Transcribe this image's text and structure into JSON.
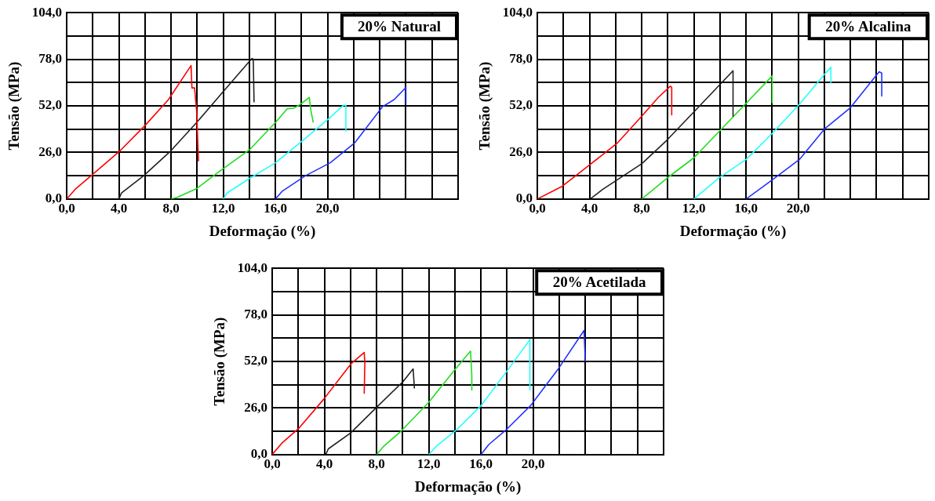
{
  "chart_data": [
    {
      "type": "line",
      "title": "20% Natural",
      "xlabel": "Deformação (%)",
      "ylabel": "Tensão (MPa)",
      "xlim": [
        0,
        30
      ],
      "ylim": [
        0,
        104
      ],
      "xticks": [
        {
          "value": 0,
          "label": "0,0"
        },
        {
          "value": 2,
          "label": null
        },
        {
          "value": 4,
          "label": "4,0"
        },
        {
          "value": 6,
          "label": null
        },
        {
          "value": 8,
          "label": "8,0"
        },
        {
          "value": 10,
          "label": null
        },
        {
          "value": 12,
          "label": "12,0"
        },
        {
          "value": 14,
          "label": null
        },
        {
          "value": 16,
          "label": "16,0"
        },
        {
          "value": 18,
          "label": null
        },
        {
          "value": 20,
          "label": "20,0"
        },
        {
          "value": 22,
          "label": null
        },
        {
          "value": 24,
          "label": null
        },
        {
          "value": 26,
          "label": null
        },
        {
          "value": 28,
          "label": null
        },
        {
          "value": 30,
          "label": null
        }
      ],
      "yticks": [
        {
          "value": 0,
          "label": "0,0"
        },
        {
          "value": 13,
          "label": null
        },
        {
          "value": 26,
          "label": "26,0"
        },
        {
          "value": 39,
          "label": null
        },
        {
          "value": 52,
          "label": "52,0"
        },
        {
          "value": 65,
          "label": null
        },
        {
          "value": 78,
          "label": "78,0"
        },
        {
          "value": 91,
          "label": null
        },
        {
          "value": 104,
          "label": "104,0"
        }
      ],
      "grid": true,
      "legend": false,
      "marker": "none",
      "line_style": "solid",
      "series": [
        {
          "color": "#ff0000",
          "x": [
            0,
            0.7,
            1.87,
            4,
            6,
            7.8,
            9.53,
            9.6,
            9.8,
            9.96,
            10.1
          ],
          "values": [
            0,
            5.8,
            13,
            26.3,
            41,
            55.5,
            74.5,
            62,
            62,
            49,
            21
          ]
        },
        {
          "color": "#222222",
          "x": [
            4,
            4.2,
            5.9,
            7.9,
            9.96,
            12,
            14.2,
            14.3,
            14.36
          ],
          "values": [
            0,
            3.4,
            13,
            26.3,
            42.7,
            60,
            78.5,
            78,
            54
          ]
        },
        {
          "color": "#22dd22",
          "x": [
            8,
            8.5,
            9.96,
            11.7,
            14,
            16,
            16.9,
            17.4,
            17.8,
            18.6,
            18.7,
            18.9
          ],
          "values": [
            0,
            1,
            5.8,
            15.4,
            27.4,
            42.7,
            50.4,
            50.7,
            52.3,
            56.7,
            50,
            42.7
          ]
        },
        {
          "color": "#22ffff",
          "x": [
            12,
            12.3,
            14,
            16,
            17.9,
            20,
            21.2,
            21.4,
            21.4
          ],
          "values": [
            0,
            3.4,
            11.4,
            20.2,
            31.5,
            44.3,
            52.3,
            52.3,
            37.9
          ]
        },
        {
          "color": "#2233ff",
          "x": [
            16,
            16.5,
            18.3,
            20.2,
            22.1,
            24.2,
            25.1,
            26,
            26
          ],
          "values": [
            0,
            4.2,
            13,
            20.2,
            31.5,
            51.5,
            55.5,
            62.3,
            53.1
          ]
        }
      ]
    },
    {
      "type": "line",
      "title": "20% Alcalina",
      "xlabel": "Deformação (%)",
      "ylabel": "Tensão (MPa)",
      "xlim": [
        0,
        30
      ],
      "ylim": [
        0,
        104
      ],
      "xticks": [
        {
          "value": 0,
          "label": "0,0"
        },
        {
          "value": 2,
          "label": null
        },
        {
          "value": 4,
          "label": "4,0"
        },
        {
          "value": 6,
          "label": null
        },
        {
          "value": 8,
          "label": "8,0"
        },
        {
          "value": 10,
          "label": null
        },
        {
          "value": 12,
          "label": "12,0"
        },
        {
          "value": 14,
          "label": null
        },
        {
          "value": 16,
          "label": "16,0"
        },
        {
          "value": 18,
          "label": null
        },
        {
          "value": 20,
          "label": "20,0"
        },
        {
          "value": 22,
          "label": null
        },
        {
          "value": 24,
          "label": null
        },
        {
          "value": 26,
          "label": null
        },
        {
          "value": 28,
          "label": null
        },
        {
          "value": 30,
          "label": null
        }
      ],
      "yticks": [
        {
          "value": 0,
          "label": "0,0"
        },
        {
          "value": 13,
          "label": null
        },
        {
          "value": 26,
          "label": "26,0"
        },
        {
          "value": 39,
          "label": null
        },
        {
          "value": 52,
          "label": "52,0"
        },
        {
          "value": 65,
          "label": null
        },
        {
          "value": 78,
          "label": "78,0"
        },
        {
          "value": 91,
          "label": null
        },
        {
          "value": 104,
          "label": "104,0"
        }
      ],
      "grid": true,
      "legend": false,
      "marker": "none",
      "line_style": "solid",
      "series": [
        {
          "color": "#ff0000",
          "x": [
            0,
            1.86,
            3.98,
            6.1,
            8,
            9.27,
            10.2,
            10.3,
            10.3
          ],
          "values": [
            0,
            6.9,
            18.9,
            31,
            46.2,
            56.7,
            63,
            62.3,
            47
          ]
        },
        {
          "color": "#222222",
          "x": [
            4.04,
            5,
            8,
            9.9,
            12,
            14.1,
            15,
            15
          ],
          "values": [
            0,
            5.3,
            19.7,
            32.6,
            48.6,
            64.7,
            71.6,
            46.2
          ]
        },
        {
          "color": "#22dd22",
          "x": [
            8,
            10.1,
            12,
            14.1,
            16,
            18,
            18
          ],
          "values": [
            0,
            12.5,
            23,
            39,
            53.4,
            68.7,
            53.8
          ]
        },
        {
          "color": "#22ffff",
          "x": [
            12,
            13.9,
            16,
            17.9,
            19.95,
            22,
            22.5,
            22.5
          ],
          "values": [
            0,
            11.7,
            22.1,
            35.8,
            51.8,
            69.5,
            73.5,
            64.7
          ]
        },
        {
          "color": "#2233ff",
          "x": [
            16,
            17.95,
            20.1,
            22,
            24,
            26.2,
            26.4,
            26.4
          ],
          "values": [
            0,
            10.4,
            22.1,
            39,
            51,
            71,
            70.3,
            57.5
          ]
        }
      ]
    },
    {
      "type": "line",
      "title": "20% Acetilada",
      "xlabel": "Deformação (%)",
      "ylabel": "Tensão (MPa)",
      "xlim": [
        0,
        30
      ],
      "ylim": [
        0,
        104
      ],
      "xticks": [
        {
          "value": 0,
          "label": "0,0"
        },
        {
          "value": 2,
          "label": null
        },
        {
          "value": 4,
          "label": "4,0"
        },
        {
          "value": 6,
          "label": null
        },
        {
          "value": 8,
          "label": "8,0"
        },
        {
          "value": 10,
          "label": null
        },
        {
          "value": 12,
          "label": "12,0"
        },
        {
          "value": 14,
          "label": null
        },
        {
          "value": 16,
          "label": "16,0"
        },
        {
          "value": 18,
          "label": null
        },
        {
          "value": 20,
          "label": "20,0"
        },
        {
          "value": 22,
          "label": null
        },
        {
          "value": 24,
          "label": null
        },
        {
          "value": 26,
          "label": null
        },
        {
          "value": 28,
          "label": null
        },
        {
          "value": 30,
          "label": null
        }
      ],
      "yticks": [
        {
          "value": 0,
          "label": "0,0"
        },
        {
          "value": 13,
          "label": null
        },
        {
          "value": 26,
          "label": "26,0"
        },
        {
          "value": 39,
          "label": null
        },
        {
          "value": 52,
          "label": "52,0"
        },
        {
          "value": 65,
          "label": null
        },
        {
          "value": 78,
          "label": "78,0"
        },
        {
          "value": 91,
          "label": null
        },
        {
          "value": 104,
          "label": "104,0"
        }
      ],
      "grid": true,
      "legend": false,
      "marker": "none",
      "line_style": "solid",
      "series": [
        {
          "color": "#ff0000",
          "x": [
            0,
            0.74,
            2,
            3.9,
            6.03,
            7.05,
            7.1,
            7.05
          ],
          "values": [
            0,
            6.4,
            14.4,
            30.5,
            50.6,
            57,
            51.4,
            34
          ]
        },
        {
          "color": "#222222",
          "x": [
            4.1,
            4.3,
            6,
            7.9,
            10.05,
            10.8,
            10.9
          ],
          "values": [
            0,
            3.2,
            12,
            25.7,
            40.9,
            47.8,
            36.9
          ]
        },
        {
          "color": "#22dd22",
          "x": [
            8,
            8.57,
            9.84,
            11.96,
            13.9,
            15.2,
            15.3,
            15.3
          ],
          "values": [
            0,
            4.8,
            12.8,
            28.9,
            46.5,
            57.8,
            44,
            36
          ]
        },
        {
          "color": "#22ffff",
          "x": [
            12,
            12.6,
            14.1,
            16,
            17.9,
            19.75,
            19.75
          ],
          "values": [
            0,
            4.8,
            13.6,
            27.3,
            45.7,
            64.2,
            36
          ]
        },
        {
          "color": "#2233ff",
          "x": [
            16,
            16.6,
            17.9,
            19.8,
            21.95,
            23.9,
            24
          ],
          "values": [
            0,
            5.6,
            13.6,
            27.3,
            48.1,
            69.3,
            52
          ]
        }
      ]
    }
  ]
}
